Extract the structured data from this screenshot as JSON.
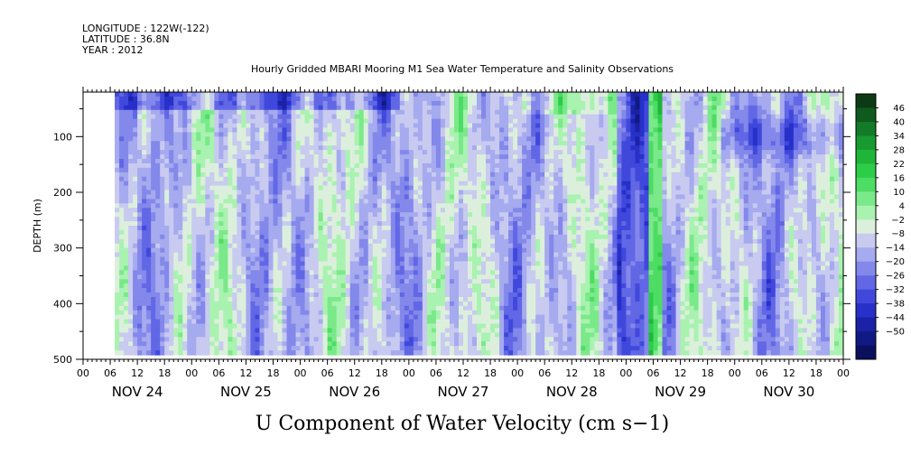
{
  "header": {
    "longitude": "LONGITUDE : 122W(-122)",
    "latitude": "LATITUDE : 36.8N",
    "year": "YEAR : 2012"
  },
  "chart_data": {
    "type": "heatmap",
    "title": "Hourly Gridded MBARI Mooring M1 Sea Water Temperature and Salinity Observations",
    "variable_title": "U Component of Water Velocity (cm s−1)",
    "ylabel": "DEPTH (m)",
    "ylim": [
      500,
      20
    ],
    "y_ticks": [
      100,
      200,
      300,
      400,
      500
    ],
    "y_tick_labels": [
      "100",
      "200",
      "300",
      "400",
      "500"
    ],
    "x_hour_labels": [
      "00",
      "06",
      "12",
      "18",
      "00",
      "06",
      "12",
      "18",
      "00",
      "06",
      "12",
      "18",
      "00",
      "06",
      "12",
      "18",
      "00",
      "06",
      "12",
      "18",
      "00",
      "06",
      "12",
      "18",
      "00",
      "06",
      "12",
      "18",
      "00"
    ],
    "x_day_labels": [
      "NOV 24",
      "NOV 25",
      "NOV 26",
      "NOV 27",
      "NOV 28",
      "NOV 29",
      "NOV 30"
    ],
    "x_range_hours": [
      0,
      168
    ],
    "data_start_hour": 7,
    "colorbar": {
      "labels": [
        "46",
        "40",
        "34",
        "28",
        "22",
        "16",
        "10",
        "4",
        "−2",
        "−8",
        "−14",
        "−20",
        "−26",
        "−32",
        "−38",
        "−44",
        "−50"
      ],
      "colors": [
        "#0c3a14",
        "#0f5a1e",
        "#137a27",
        "#189a30",
        "#1fb539",
        "#2ccd47",
        "#4ddc64",
        "#7ae98a",
        "#a9f2b0",
        "#dcefdc",
        "#c8caf0",
        "#a6aaee",
        "#8388ea",
        "#6167e5",
        "#4048dc",
        "#2730c8",
        "#1b22a6",
        "#111a82",
        "#0a0f5e"
      ],
      "levels": [
        -50,
        -44,
        -38,
        -32,
        -26,
        -20,
        -14,
        -8,
        -2,
        4,
        10,
        16,
        22,
        28,
        34,
        40,
        46,
        52
      ]
    }
  }
}
